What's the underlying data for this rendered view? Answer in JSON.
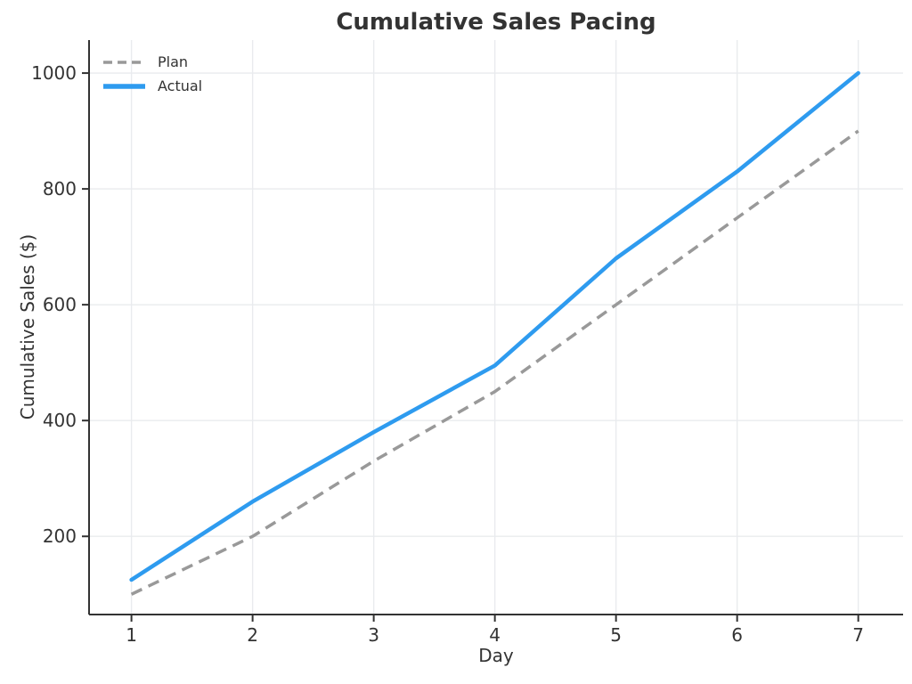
{
  "figure": {
    "title": "Cumulative Sales Pacing",
    "xlabel": "Day",
    "ylabel": "Cumulative Sales ($)"
  },
  "chart_data": {
    "type": "line",
    "title": "Cumulative Sales Pacing",
    "xlabel": "Day",
    "ylabel": "Cumulative Sales ($)",
    "x": [
      1,
      2,
      3,
      4,
      5,
      6,
      7
    ],
    "series": [
      {
        "name": "Plan",
        "values": [
          100,
          200,
          330,
          450,
          600,
          750,
          900
        ],
        "color": "#999999",
        "dash": "dashed",
        "linewidth": 3.5
      },
      {
        "name": "Actual",
        "values": [
          125,
          260,
          380,
          495,
          680,
          830,
          1000
        ],
        "color": "#2E9BEF",
        "dash": "solid",
        "linewidth": 4.5
      }
    ],
    "xticks": [
      1,
      2,
      3,
      4,
      5,
      6,
      7
    ],
    "yticks": [
      200,
      400,
      600,
      800,
      1000
    ],
    "xlim": [
      0.65,
      7.37
    ],
    "ylim": [
      65,
      1057
    ],
    "grid": true,
    "legend_position": "upper left",
    "colors": {
      "text": "#333333",
      "spine": "#333333",
      "grid": "#e9ebee",
      "background": "#ffffff"
    }
  }
}
